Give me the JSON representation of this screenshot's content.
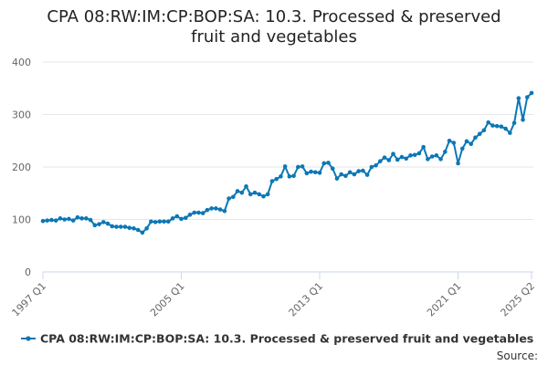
{
  "colors": {
    "series": "#0c77b6",
    "grid": "#e6e6e6",
    "axis": "#ccd6eb"
  },
  "chart_data": {
    "type": "line",
    "title": "CPA 08:RW:IM:CP:BOP:SA: 10.3. Processed & preserved fruit and vegetables",
    "title_lines": [
      "CPA 08:RW:IM:CP:BOP:SA: 10.3. Processed & preserved",
      "fruit and vegetables"
    ],
    "xlabel": "",
    "ylabel": "",
    "x_tick_labels": [
      "1997 Q1",
      "2005 Q1",
      "2013 Q1",
      "2021 Q1",
      "2025 Q2"
    ],
    "x_tick_index": [
      0,
      32,
      64,
      96,
      113
    ],
    "ylim": [
      0,
      400
    ],
    "y_ticks": [
      0,
      100,
      200,
      300,
      400
    ],
    "grid": true,
    "legend_position": "bottom",
    "source_label": "Source:",
    "x_start": "1997 Q1",
    "x_end": "2025 Q2",
    "series": [
      {
        "name": "CPA 08:RW:IM:CP:BOP:SA: 10.3. Processed & preserved fruit and vegetables",
        "values": [
          97,
          98,
          99,
          98,
          102,
          100,
          101,
          98,
          104,
          102,
          102,
          99,
          89,
          91,
          95,
          92,
          87,
          86,
          86,
          86,
          84,
          83,
          80,
          75,
          83,
          96,
          95,
          96,
          96,
          96,
          102,
          106,
          101,
          103,
          109,
          113,
          113,
          112,
          118,
          121,
          121,
          119,
          116,
          140,
          143,
          154,
          151,
          163,
          148,
          151,
          148,
          144,
          148,
          173,
          177,
          182,
          201,
          182,
          183,
          200,
          201,
          188,
          191,
          190,
          189,
          207,
          208,
          197,
          178,
          186,
          183,
          190,
          186,
          192,
          193,
          185,
          200,
          203,
          211,
          218,
          213,
          225,
          214,
          219,
          216,
          222,
          223,
          226,
          238,
          215,
          220,
          222,
          215,
          229,
          250,
          246,
          207,
          235,
          249,
          244,
          256,
          263,
          270,
          285,
          279,
          278,
          277,
          273,
          265,
          284,
          331,
          290,
          333,
          341
        ]
      }
    ]
  }
}
